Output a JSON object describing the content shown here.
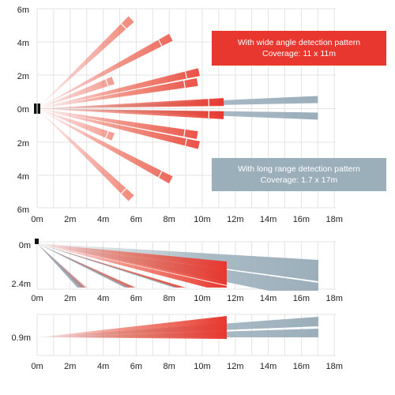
{
  "colors": {
    "wide": "#e8372f",
    "long": "#9bafbb",
    "grid": "#e3e3e3",
    "sensor": "#111111"
  },
  "callouts": {
    "wide": {
      "line1": "With wide angle detection pattern",
      "line2": "Coverage: 11 x 11m"
    },
    "long": {
      "line1": "With long range detection pattern",
      "line2": "Coverage: 1.7 x 17m"
    }
  },
  "x_ticks": [
    "0m",
    "2m",
    "4m",
    "6m",
    "8m",
    "10m",
    "12m",
    "14m",
    "16m",
    "18m"
  ],
  "top_view": {
    "y_ticks": [
      "6m",
      "4m",
      "2m",
      "0m",
      "2m",
      "4m",
      "6m"
    ],
    "wide_beams": [
      {
        "to": [
          5.7,
          5.4
        ],
        "segments": 1
      },
      {
        "to": [
          8.1,
          4.3
        ],
        "segments": 1
      },
      {
        "to": [
          4.6,
          1.7
        ],
        "segments": 1
      },
      {
        "to": [
          9.8,
          2.2
        ],
        "segments": 1
      },
      {
        "to": [
          9.7,
          1.6
        ],
        "segments": 1
      },
      {
        "to": [
          11.3,
          0.4
        ],
        "segments": 1
      },
      {
        "to": [
          11.3,
          -0.4
        ],
        "segments": 1
      },
      {
        "to": [
          9.7,
          -1.6
        ],
        "segments": 1
      },
      {
        "to": [
          9.8,
          -2.2
        ],
        "segments": 1
      },
      {
        "to": [
          4.6,
          -1.7
        ],
        "segments": 1
      },
      {
        "to": [
          8.1,
          -4.3
        ],
        "segments": 1
      },
      {
        "to": [
          5.7,
          -5.4
        ],
        "segments": 1
      }
    ],
    "long_beams": [
      {
        "to": [
          17.0,
          0.55
        ]
      },
      {
        "to": [
          17.0,
          -0.45
        ]
      }
    ]
  },
  "side_view": {
    "y_ticks": [
      "0m",
      "2.4m"
    ],
    "y_range": [
      0,
      2.4
    ]
  },
  "low_view": {
    "y_ticks": [
      "0.9m"
    ]
  }
}
